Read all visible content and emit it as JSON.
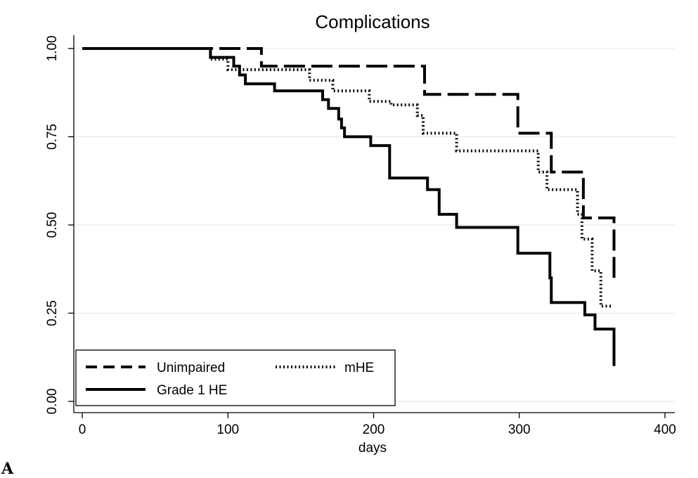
{
  "chart_data": {
    "type": "line",
    "subtype": "kaplan-meier step",
    "title": "Complications",
    "xlabel": "days",
    "ylabel": "",
    "xlim": [
      0,
      400
    ],
    "ylim": [
      0,
      1
    ],
    "x_ticks": [
      0,
      100,
      200,
      300,
      400
    ],
    "x_tick_labels": [
      "0",
      "100",
      "200",
      "300",
      "400"
    ],
    "y_ticks": [
      0,
      0.25,
      0.5,
      0.75,
      1.0
    ],
    "y_tick_labels": [
      "0.00",
      "0.25",
      "0.50",
      "0.75",
      "1.00"
    ],
    "grid": "horizontal",
    "legend_position": "bottom-left",
    "series": [
      {
        "name": "Unimpaired",
        "style": "dashed",
        "color": "#000000",
        "points": [
          [
            0,
            1.0
          ],
          [
            123,
            1.0
          ],
          [
            123,
            0.95
          ],
          [
            235,
            0.95
          ],
          [
            235,
            0.87
          ],
          [
            299,
            0.87
          ],
          [
            299,
            0.76
          ],
          [
            322,
            0.76
          ],
          [
            322,
            0.65
          ],
          [
            344,
            0.65
          ],
          [
            344,
            0.52
          ],
          [
            365,
            0.52
          ],
          [
            365,
            0.35
          ]
        ]
      },
      {
        "name": "mHE",
        "style": "dotted",
        "color": "#000000",
        "points": [
          [
            0,
            1.0
          ],
          [
            88,
            1.0
          ],
          [
            88,
            0.97
          ],
          [
            100,
            0.97
          ],
          [
            100,
            0.94
          ],
          [
            156,
            0.94
          ],
          [
            156,
            0.91
          ],
          [
            172,
            0.91
          ],
          [
            172,
            0.88
          ],
          [
            197,
            0.88
          ],
          [
            197,
            0.85
          ],
          [
            212,
            0.85
          ],
          [
            212,
            0.84
          ],
          [
            230,
            0.84
          ],
          [
            230,
            0.81
          ],
          [
            234,
            0.81
          ],
          [
            234,
            0.76
          ],
          [
            257,
            0.76
          ],
          [
            257,
            0.71
          ],
          [
            313,
            0.71
          ],
          [
            313,
            0.65
          ],
          [
            319,
            0.65
          ],
          [
            319,
            0.6
          ],
          [
            340,
            0.6
          ],
          [
            340,
            0.53
          ],
          [
            343,
            0.53
          ],
          [
            343,
            0.46
          ],
          [
            350,
            0.46
          ],
          [
            350,
            0.37
          ],
          [
            356,
            0.37
          ],
          [
            356,
            0.27
          ],
          [
            364,
            0.27
          ]
        ]
      },
      {
        "name": "Grade 1 HE",
        "style": "solid",
        "color": "#000000",
        "points": [
          [
            0,
            1.0
          ],
          [
            88,
            1.0
          ],
          [
            88,
            0.975
          ],
          [
            104,
            0.975
          ],
          [
            104,
            0.95
          ],
          [
            108,
            0.95
          ],
          [
            108,
            0.925
          ],
          [
            112,
            0.925
          ],
          [
            112,
            0.9
          ],
          [
            132,
            0.9
          ],
          [
            132,
            0.88
          ],
          [
            165,
            0.88
          ],
          [
            165,
            0.855
          ],
          [
            169,
            0.855
          ],
          [
            169,
            0.83
          ],
          [
            176,
            0.83
          ],
          [
            176,
            0.8
          ],
          [
            178,
            0.8
          ],
          [
            178,
            0.775
          ],
          [
            180,
            0.775
          ],
          [
            180,
            0.75
          ],
          [
            198,
            0.75
          ],
          [
            198,
            0.725
          ],
          [
            211,
            0.725
          ],
          [
            211,
            0.633
          ],
          [
            237,
            0.633
          ],
          [
            237,
            0.6
          ],
          [
            245,
            0.6
          ],
          [
            245,
            0.53
          ],
          [
            257,
            0.53
          ],
          [
            257,
            0.493
          ],
          [
            299,
            0.493
          ],
          [
            299,
            0.42
          ],
          [
            321,
            0.42
          ],
          [
            321,
            0.35
          ],
          [
            322,
            0.35
          ],
          [
            322,
            0.28
          ],
          [
            345,
            0.28
          ],
          [
            345,
            0.245
          ],
          [
            352,
            0.245
          ],
          [
            352,
            0.205
          ],
          [
            365,
            0.205
          ],
          [
            365,
            0.1
          ]
        ]
      }
    ]
  },
  "panel_label": "A"
}
